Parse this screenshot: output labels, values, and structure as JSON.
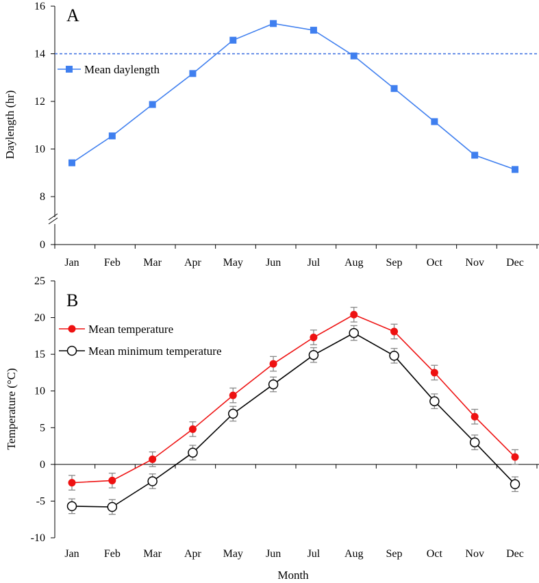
{
  "chart_data": [
    {
      "panel": "A",
      "type": "line",
      "categories": [
        "Jan",
        "Feb",
        "Mar",
        "Apr",
        "May",
        "Jun",
        "Jul",
        "Aug",
        "Sep",
        "Oct",
        "Nov",
        "Dec"
      ],
      "ylabel": "Daylength (hr)",
      "ylim": [
        0,
        16
      ],
      "y_ticks": [
        "0",
        "8",
        "10",
        "12",
        "14",
        "16"
      ],
      "axis_break": true,
      "reference_line": {
        "value": 14,
        "style": "dashed",
        "color": "#3a6fe0"
      },
      "legend_position": "upper-left",
      "series": [
        {
          "name": "Mean daylength",
          "marker": "square",
          "color": "#3f7fef",
          "values": [
            9.42,
            10.55,
            11.87,
            13.17,
            14.57,
            15.27,
            14.99,
            13.91,
            12.54,
            11.15,
            9.74,
            9.14
          ]
        }
      ]
    },
    {
      "panel": "B",
      "type": "line",
      "categories": [
        "Jan",
        "Feb",
        "Mar",
        "Apr",
        "May",
        "Jun",
        "Jul",
        "Aug",
        "Sep",
        "Oct",
        "Nov",
        "Dec"
      ],
      "xlabel": "Month",
      "ylabel": "Temperature  (°C)",
      "ylim": [
        -10,
        25
      ],
      "y_ticks": [
        "-10",
        "-5",
        "0",
        "5",
        "10",
        "15",
        "20",
        "25"
      ],
      "legend_position": "upper-left",
      "series": [
        {
          "name": "Mean temperature",
          "marker": "filled-circle",
          "color": "#ee1111",
          "values": [
            -2.5,
            -2.2,
            0.7,
            4.8,
            9.4,
            13.7,
            17.3,
            20.4,
            18.1,
            12.5,
            6.5,
            1.0
          ],
          "error": [
            1.0,
            1.0,
            1.0,
            1.0,
            1.0,
            1.0,
            1.0,
            1.0,
            1.0,
            1.0,
            1.0,
            1.0
          ]
        },
        {
          "name": "Mean minimum temperature",
          "marker": "open-circle",
          "color": "#000000",
          "values": [
            -5.7,
            -5.8,
            -2.3,
            1.6,
            6.9,
            10.9,
            14.9,
            17.9,
            14.8,
            8.6,
            3.0,
            -2.7
          ],
          "error": [
            1.0,
            1.0,
            1.0,
            1.0,
            1.0,
            1.0,
            1.0,
            1.0,
            1.0,
            1.0,
            1.0,
            1.0
          ]
        }
      ]
    }
  ]
}
